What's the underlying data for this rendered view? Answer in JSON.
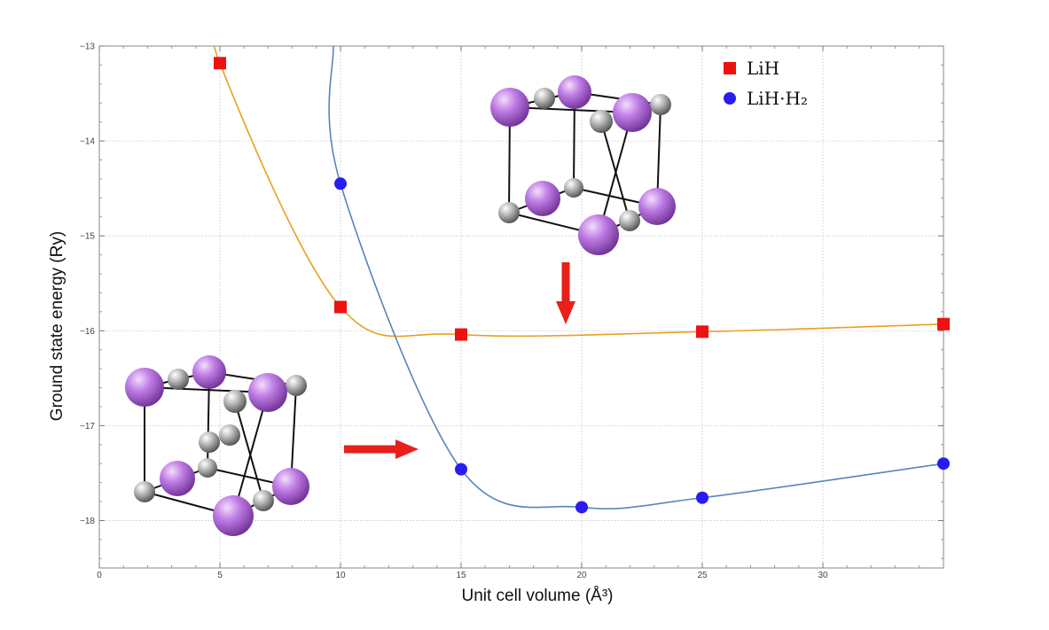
{
  "chart_data": {
    "type": "scatter",
    "xlabel": "Unit cell volume (Å³)",
    "ylabel": "Ground state energy (Ry)",
    "xlim": [
      0,
      35
    ],
    "ylim": [
      -18.5,
      -13
    ],
    "x_ticks": [
      0,
      5,
      10,
      15,
      20,
      25,
      30
    ],
    "y_ticks": [
      -13,
      -14,
      -15,
      -16,
      -17,
      -18
    ],
    "grid": true,
    "legend_position": "top-right",
    "series": [
      {
        "name": "LiH",
        "marker": "square",
        "color": "#ee1111",
        "curve_color": "#e8a020",
        "x": [
          5,
          10,
          15,
          25,
          35
        ],
        "y": [
          -13.18,
          -15.75,
          -16.04,
          -16.01,
          -15.93
        ]
      },
      {
        "name": "LiH·H₂",
        "marker": "circle",
        "color": "#2a1cf0",
        "curve_color": "#5a85b8",
        "x": [
          10,
          15,
          20,
          25,
          35
        ],
        "y": [
          -14.45,
          -17.46,
          -17.86,
          -17.76,
          -17.4
        ]
      }
    ],
    "annotations": [
      {
        "kind": "arrow",
        "direction": "down",
        "color": "#e8201a",
        "meaning": "upper crystal structure inset points to LiH curve"
      },
      {
        "kind": "arrow",
        "direction": "right",
        "color": "#e8201a",
        "meaning": "lower crystal structure inset points to LiH·H₂ curve"
      }
    ],
    "insets": [
      {
        "kind": "crystal-structure",
        "atoms": [
          "Li (violet, large)",
          "H (grey, small)"
        ],
        "location": "upper-middle"
      },
      {
        "kind": "crystal-structure",
        "atoms": [
          "Li (violet, large)",
          "H (grey, small)"
        ],
        "location": "lower-left"
      }
    ],
    "colors": {
      "li_atom": "#b46ee0",
      "h_atom": "#a0a0a0",
      "arrow": "#e8201a"
    }
  }
}
